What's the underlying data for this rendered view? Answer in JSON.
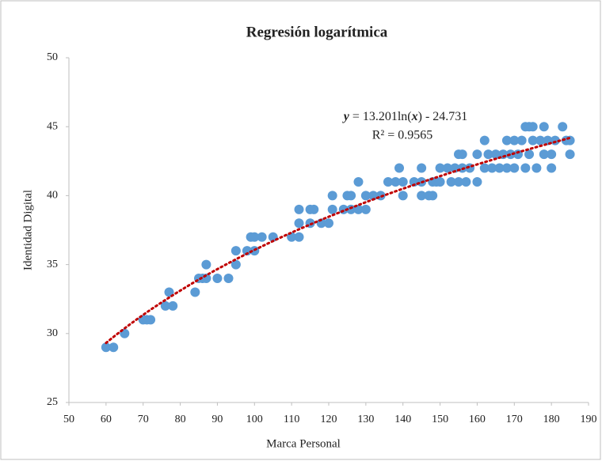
{
  "chart_data": {
    "type": "scatter",
    "title": "Regresión logarítmica",
    "x_label": "Marca Personal",
    "y_label": "Identidad Digital",
    "xlim": [
      50,
      190
    ],
    "xticks": [
      50,
      60,
      70,
      80,
      90,
      100,
      110,
      120,
      130,
      140,
      150,
      160,
      170,
      180,
      190
    ],
    "ylim": [
      25,
      50
    ],
    "yticks": [
      25,
      30,
      35,
      40,
      45,
      50
    ],
    "grid": false,
    "series": [
      {
        "color": "#5b9bd5",
        "x": [
          60,
          62,
          65,
          70,
          71,
          72,
          76,
          77,
          78,
          84,
          85,
          86,
          87,
          87,
          90,
          93,
          95,
          95,
          98,
          99,
          100,
          100,
          102,
          105,
          110,
          112,
          112,
          112,
          115,
          115,
          116,
          118,
          120,
          121,
          121,
          124,
          125,
          126,
          126,
          128,
          128,
          130,
          130,
          132,
          134,
          136,
          138,
          139,
          140,
          140,
          143,
          145,
          145,
          145,
          147,
          148,
          148,
          149,
          150,
          150,
          152,
          153,
          154,
          155,
          155,
          156,
          156,
          157,
          158,
          160,
          160,
          162,
          162,
          163,
          164,
          165,
          166,
          167,
          168,
          168,
          169,
          170,
          170,
          171,
          172,
          173,
          173,
          174,
          174,
          175,
          175,
          176,
          177,
          178,
          178,
          179,
          180,
          180,
          181,
          183,
          184,
          185,
          185
        ],
        "values": [
          29,
          29,
          30,
          31,
          31,
          31,
          32,
          33,
          32,
          33,
          34,
          34,
          35,
          34,
          34,
          34,
          36,
          35,
          36,
          37,
          36,
          37,
          37,
          37,
          37,
          39,
          38,
          37,
          39,
          38,
          39,
          38,
          38,
          40,
          39,
          39,
          40,
          40,
          39,
          41,
          39,
          40,
          39,
          40,
          40,
          41,
          41,
          42,
          41,
          40,
          41,
          42,
          41,
          40,
          40,
          41,
          40,
          41,
          42,
          41,
          42,
          41,
          42,
          43,
          41,
          43,
          42,
          41,
          42,
          43,
          41,
          44,
          42,
          43,
          42,
          43,
          42,
          43,
          44,
          42,
          43,
          44,
          42,
          43,
          44,
          45,
          42,
          45,
          43,
          45,
          44,
          42,
          44,
          45,
          43,
          44,
          43,
          42,
          44,
          45,
          44,
          44,
          43
        ]
      }
    ],
    "trendline": {
      "kind": "logarithmic",
      "coefficients": [
        13.201,
        -24.731
      ],
      "color": "#c00000",
      "equation_parts": [
        "y",
        " = 13.201ln(",
        "x",
        ") - 24.731"
      ],
      "r2_label": "R² = 0.9565"
    }
  }
}
